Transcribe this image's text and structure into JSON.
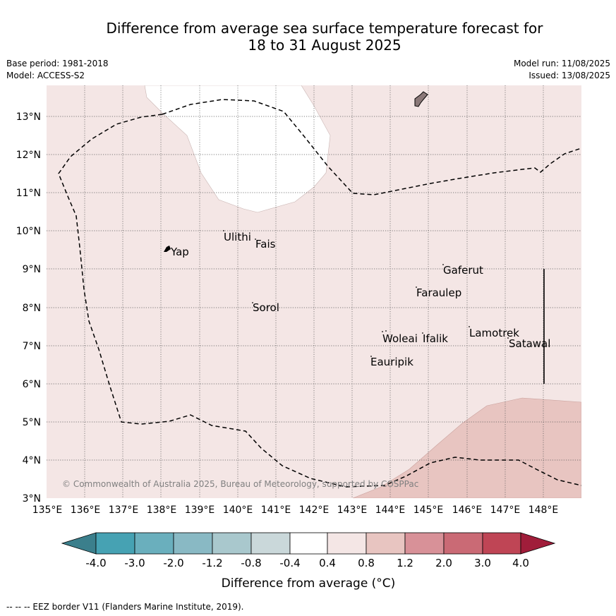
{
  "title_line1": "Difference from average sea surface temperature forecast for",
  "title_line2": "18 to 31 August 2025",
  "base_period": "Base period: 1981-2018",
  "model": "Model: ACCESS-S2",
  "model_run": "Model run: 11/08/2025",
  "issued": "Issued: 13/08/2025",
  "latitude_labels": [
    "13°N",
    "12°N",
    "11°N",
    "10°N",
    "9°N",
    "8°N",
    "7°N",
    "6°N",
    "5°N",
    "4°N",
    "3°N"
  ],
  "longitude_labels": [
    "135°E",
    "136°E",
    "137°E",
    "138°E",
    "139°E",
    "140°E",
    "141°E",
    "142°E",
    "143°E",
    "144°E",
    "145°E",
    "146°E",
    "147°E",
    "148°E"
  ],
  "places": {
    "yap": "Yap",
    "ulithi": "Ulithi",
    "fais": "Fais",
    "sorol": "Sorol",
    "gaferut": "Gaferut",
    "faraulep": "Faraulep",
    "woleai": "Woleai",
    "ifalik": "Ifalik",
    "lamotrek": "Lamotrek",
    "satawal": "Satawal",
    "eauripik": "Eauripik"
  },
  "copyright": "© Commonwealth of Australia 2025, Bureau of Meteorology, supported by COSPPac",
  "colorbar": {
    "labels": [
      "-4.0",
      "-3.0",
      "-2.0",
      "-1.2",
      "-0.8",
      "-0.4",
      "0.4",
      "0.8",
      "1.2",
      "2.0",
      "3.0",
      "4.0"
    ],
    "colors": [
      "#3b7f8c",
      "#46a2b3",
      "#6aafbd",
      "#89b9c4",
      "#a9c8cd",
      "#cad8da",
      "#ffffff",
      "#f4e6e5",
      "#e8c5c1",
      "#d89198",
      "#ca6a75",
      "#bf4555",
      "#a01d3a"
    ],
    "title": "Difference from average (°C)"
  },
  "legend_footer": "--  --  -- EEZ border V11 (Flanders Marine Institute, 2019).",
  "colors": {
    "band_0_4_to_0_8": "#f4e6e5",
    "band_0_8_to_1_2": "#e8c5c1",
    "neutral": "#ffffff"
  }
}
